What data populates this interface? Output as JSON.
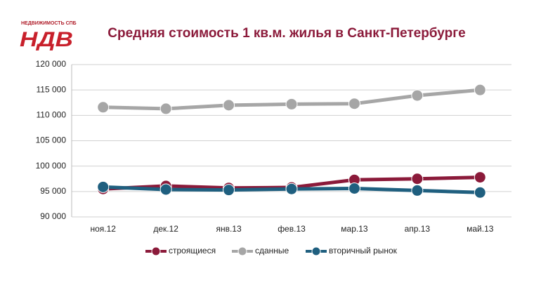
{
  "logo": {
    "caption": "НЕДВИЖИМОСТЬ СПБ",
    "mark": "НДВ"
  },
  "chart_data": {
    "type": "line",
    "title": "Средняя стоимость 1 кв.м. жилья в Санкт-Петербурге",
    "categories": [
      "ноя.12",
      "дек.12",
      "янв.13",
      "фев.13",
      "мар.13",
      "апр.13",
      "май.13"
    ],
    "series": [
      {
        "name": "строящиеся",
        "color": "#8b1a3a",
        "values": [
          95500,
          96100,
          95700,
          95800,
          97300,
          97500,
          97800
        ]
      },
      {
        "name": "сданные",
        "color": "#a6a6a6",
        "values": [
          111600,
          111300,
          112000,
          112200,
          112300,
          113900,
          115000
        ]
      },
      {
        "name": "вторичный рынок",
        "color": "#1f5f7f",
        "values": [
          95900,
          95400,
          95300,
          95500,
          95600,
          95200,
          94800
        ]
      }
    ],
    "ylim": [
      90000,
      120000
    ],
    "yticks": [
      {
        "value": 90000,
        "label": "90 000"
      },
      {
        "value": 95000,
        "label": "95 000"
      },
      {
        "value": 100000,
        "label": "100 000"
      },
      {
        "value": 105000,
        "label": "105 000"
      },
      {
        "value": 110000,
        "label": "110 000"
      },
      {
        "value": 115000,
        "label": "115 000"
      },
      {
        "value": 120000,
        "label": "120 000"
      }
    ],
    "grid": true,
    "legend": "bottom"
  }
}
